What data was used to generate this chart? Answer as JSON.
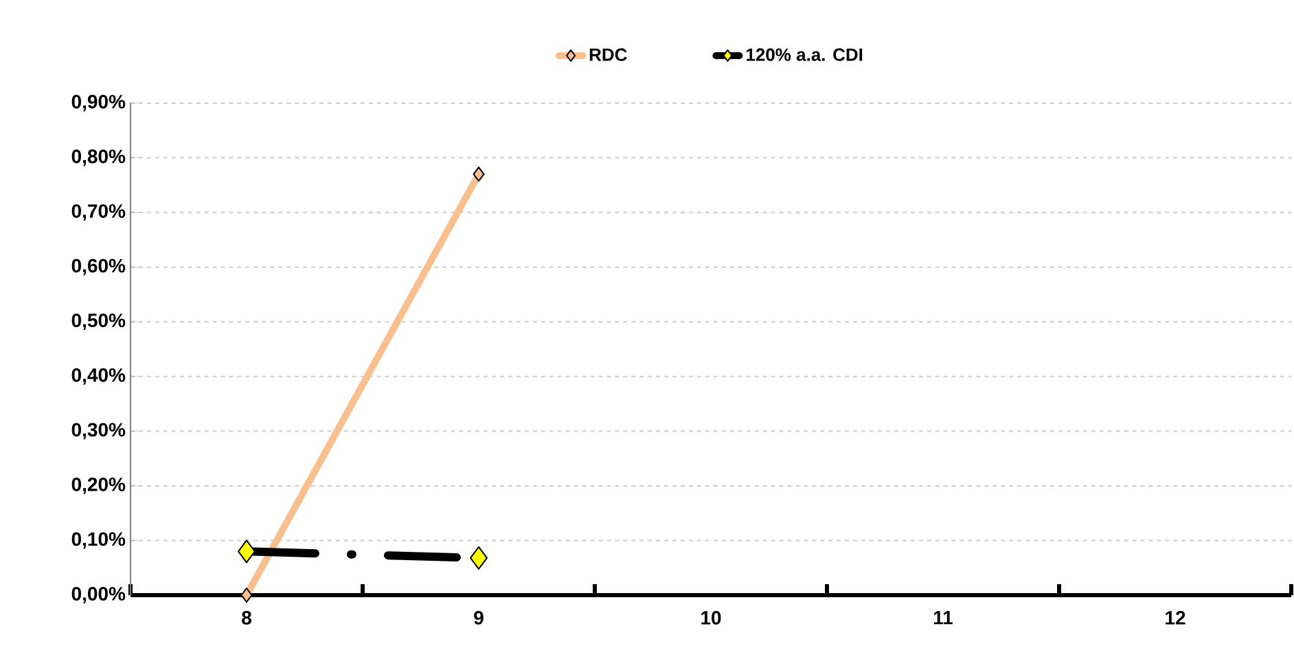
{
  "chart_data": {
    "type": "line",
    "categories": [
      "8",
      "9",
      "10",
      "11",
      "12"
    ],
    "series": [
      {
        "name": "RDC",
        "color": "#f9bf8f",
        "colors": [
          "#f9bf8f",
          "#f9bf8f",
          null,
          null,
          null
        ],
        "marker": "diamond",
        "line_style": "solid",
        "values": [
          0.0,
          0.77,
          null,
          null,
          null
        ]
      },
      {
        "name": "120% a.a. CDI",
        "color": "#000000",
        "colors": [
          "#ffff00",
          "#ffff00",
          null,
          null,
          null
        ],
        "marker": "diamond",
        "line_style": "dashed",
        "values": [
          0.08,
          0.068,
          null,
          null,
          null
        ]
      }
    ],
    "ylim": [
      0,
      0.9
    ],
    "yticks": [
      {
        "value": 0,
        "label": "0,00%"
      },
      {
        "value": 0.1,
        "label": "0,10%"
      },
      {
        "value": 0.2,
        "label": "0,20%"
      },
      {
        "value": 0.3,
        "label": "0,30%"
      },
      {
        "value": 0.4,
        "label": "0,40%"
      },
      {
        "value": 0.5,
        "label": "0,50%"
      },
      {
        "value": 0.6,
        "label": "0,60%"
      },
      {
        "value": 0.7,
        "label": "0,70%"
      },
      {
        "value": 0.8,
        "label": "0,80%"
      },
      {
        "value": 0.9,
        "label": "0,90%"
      }
    ],
    "grid": "y",
    "legend": "top"
  }
}
